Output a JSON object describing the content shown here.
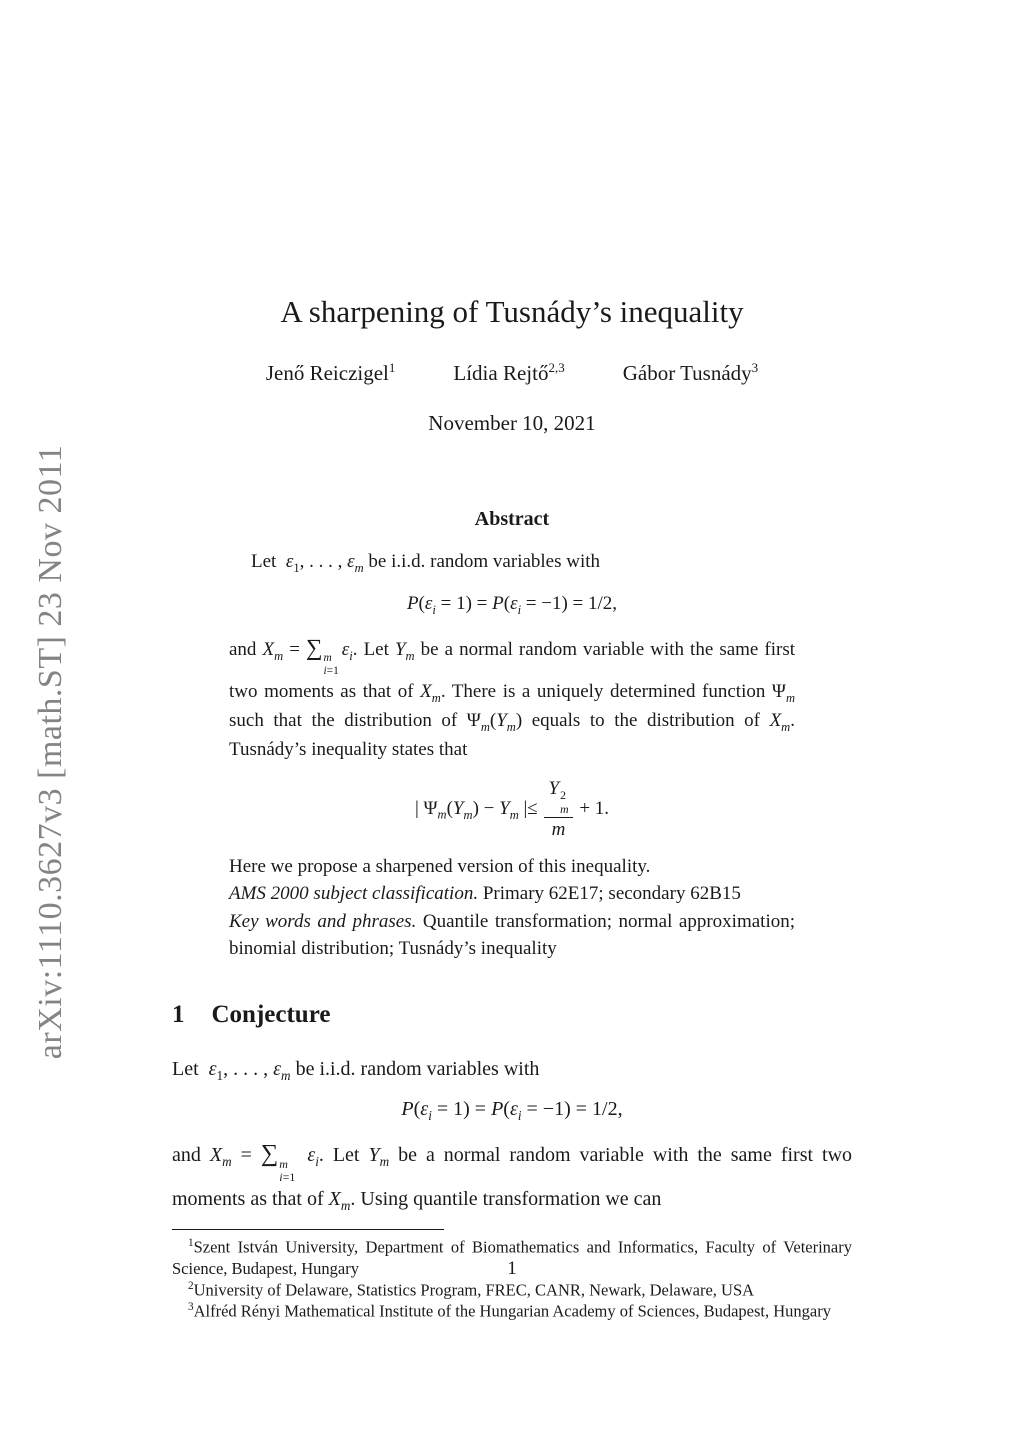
{
  "stamp": {
    "text": "arXiv:1110.3627v3  [math.ST]  23 Nov 2011",
    "color": "#848484"
  },
  "header": {
    "title": "A sharpening of Tusnády’s inequality",
    "authors": [
      {
        "name": "Jenő Reiczigel",
        "affil_marks": "1"
      },
      {
        "name": "Lídia Rejtő",
        "affil_marks": "2,3"
      },
      {
        "name": "Gábor Tusnády",
        "affil_marks": "3"
      }
    ],
    "date": "November 10, 2021"
  },
  "abstract": {
    "heading": "Abstract",
    "intro_html": "Let&nbsp; <i>ε</i><sub>1</sub>, . . . , <i>ε<sub>m</sub></i> be i.i.d. random variables with",
    "eq1_html": "<i>P</i>(<i>ε<sub>i</sub></i> = 1) = <i>P</i>(<i>ε<sub>i</sub></i> = −1) = 1/2,",
    "body_html": "and <i>X<sub>m</sub></i> = <span class='bsum'>∑</span><span class='lims'><span><i>m</i></span><span><i>i</i>=1</span></span><i>ε<sub>i</sub></i>. Let <i>Y<sub>m</sub></i> be a normal random variable with the same first two moments as that of <i>X<sub>m</sub></i>. There is a uniquely determined function Ψ<sub><i>m</i></sub> such that the distribution of Ψ<sub><i>m</i></sub>(<i>Y<sub>m</sub></i>) equals to the distribution of <i>X<sub>m</sub></i>. Tusnády’s inequality states that",
    "eq2_html": "| Ψ<sub><i>m</i></sub>(<i>Y<sub>m</sub></i>) − <i>Y<sub>m</sub></i> |≤ <span class='frac'><span class='num'><i>Y</i><span class='ss'><span>2</span><span><i>m</i></span></span></span><span class='den'><i>m</i></span></span> + 1.",
    "outro": "Here we propose a sharpened version of this inequality.",
    "ams_html": "<i>AMS 2000 subject classification.</i> Primary 62E17; secondary 62B15",
    "keywords_html": "<i>Key words and phrases.</i> Quantile transformation; normal approximation; binomial distribution; Tusnády’s inequality"
  },
  "section1": {
    "number": "1",
    "heading": "Conjecture",
    "p1_html": "Let&nbsp; <i>ε</i><sub>1</sub>, . . . , <i>ε<sub>m</sub></i> be i.i.d. random variables with",
    "eq1_html": "<i>P</i>(<i>ε<sub>i</sub></i> = 1) = <i>P</i>(<i>ε<sub>i</sub></i> = −1) = 1/2,",
    "p2_html": "and <i>X<sub>m</sub></i> = <span class='bsum'>∑</span><span class='lims'><span><i>m</i></span><span><i>i</i>=1</span></span> <i>ε<sub>i</sub></i>. Let <i>Y<sub>m</sub></i> be a normal random variable with the same first two moments as that of <i>X<sub>m</sub></i>. Using quantile transformation we can"
  },
  "footnotes": [
    {
      "mark": "1",
      "text": "Szent István University, Department of Biomathematics and Informatics, Faculty of Veterinary Science, Budapest, Hungary"
    },
    {
      "mark": "2",
      "text": "University of Delaware, Statistics Program, FREC, CANR, Newark, Delaware, USA"
    },
    {
      "mark": "3",
      "text": "Alfréd Rényi Mathematical Institute of the Hungarian Academy of Sciences, Budapest, Hungary"
    }
  ],
  "page": {
    "number": "1"
  }
}
